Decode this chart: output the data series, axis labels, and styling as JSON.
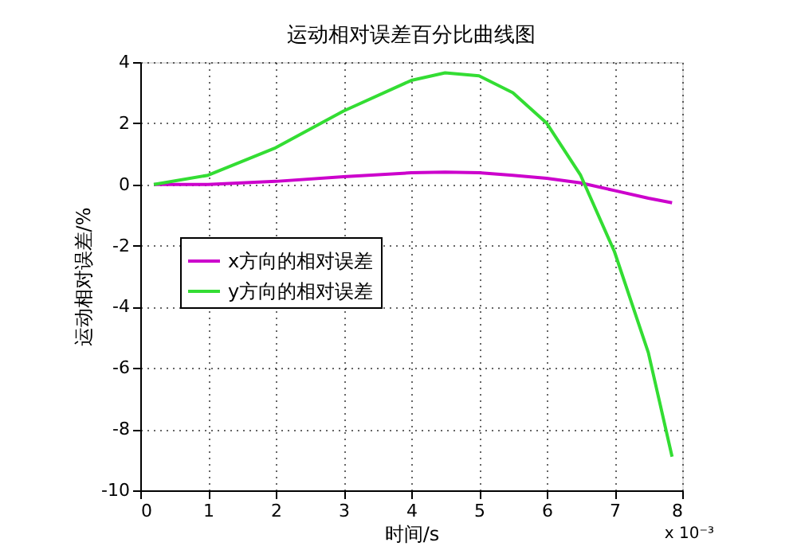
{
  "chart_data": {
    "type": "line",
    "title": "运动相对误差百分比曲线图",
    "xlabel": "时间/s",
    "ylabel": "运动相对误差/%",
    "annotations": [
      "x 10⁻³"
    ],
    "x": [
      0.2,
      1,
      2,
      3,
      4,
      4.5,
      5,
      5.5,
      6,
      6.5,
      7,
      7.5,
      7.85
    ],
    "series": [
      {
        "name": "x方向的相对误差",
        "color": "#cc00cc",
        "values": [
          0,
          0.0,
          0.1,
          0.25,
          0.38,
          0.4,
          0.38,
          0.3,
          0.2,
          0.05,
          -0.2,
          -0.45,
          -0.6
        ]
      },
      {
        "name": "y方向的相对误差",
        "color": "#33dd33",
        "values": [
          0,
          0.3,
          1.2,
          2.4,
          3.4,
          3.65,
          3.55,
          3.0,
          2.0,
          0.3,
          -2.2,
          -5.5,
          -8.9
        ]
      }
    ],
    "xlim": [
      0,
      8
    ],
    "xticks": [
      0,
      1,
      2,
      3,
      4,
      5,
      6,
      7,
      8
    ],
    "ylim": [
      -10,
      4
    ],
    "yticks": [
      -10,
      -8,
      -6,
      -4,
      -2,
      0,
      2,
      4
    ],
    "grid": true,
    "legend": "left",
    "line_style": "solid",
    "marker": "none"
  }
}
